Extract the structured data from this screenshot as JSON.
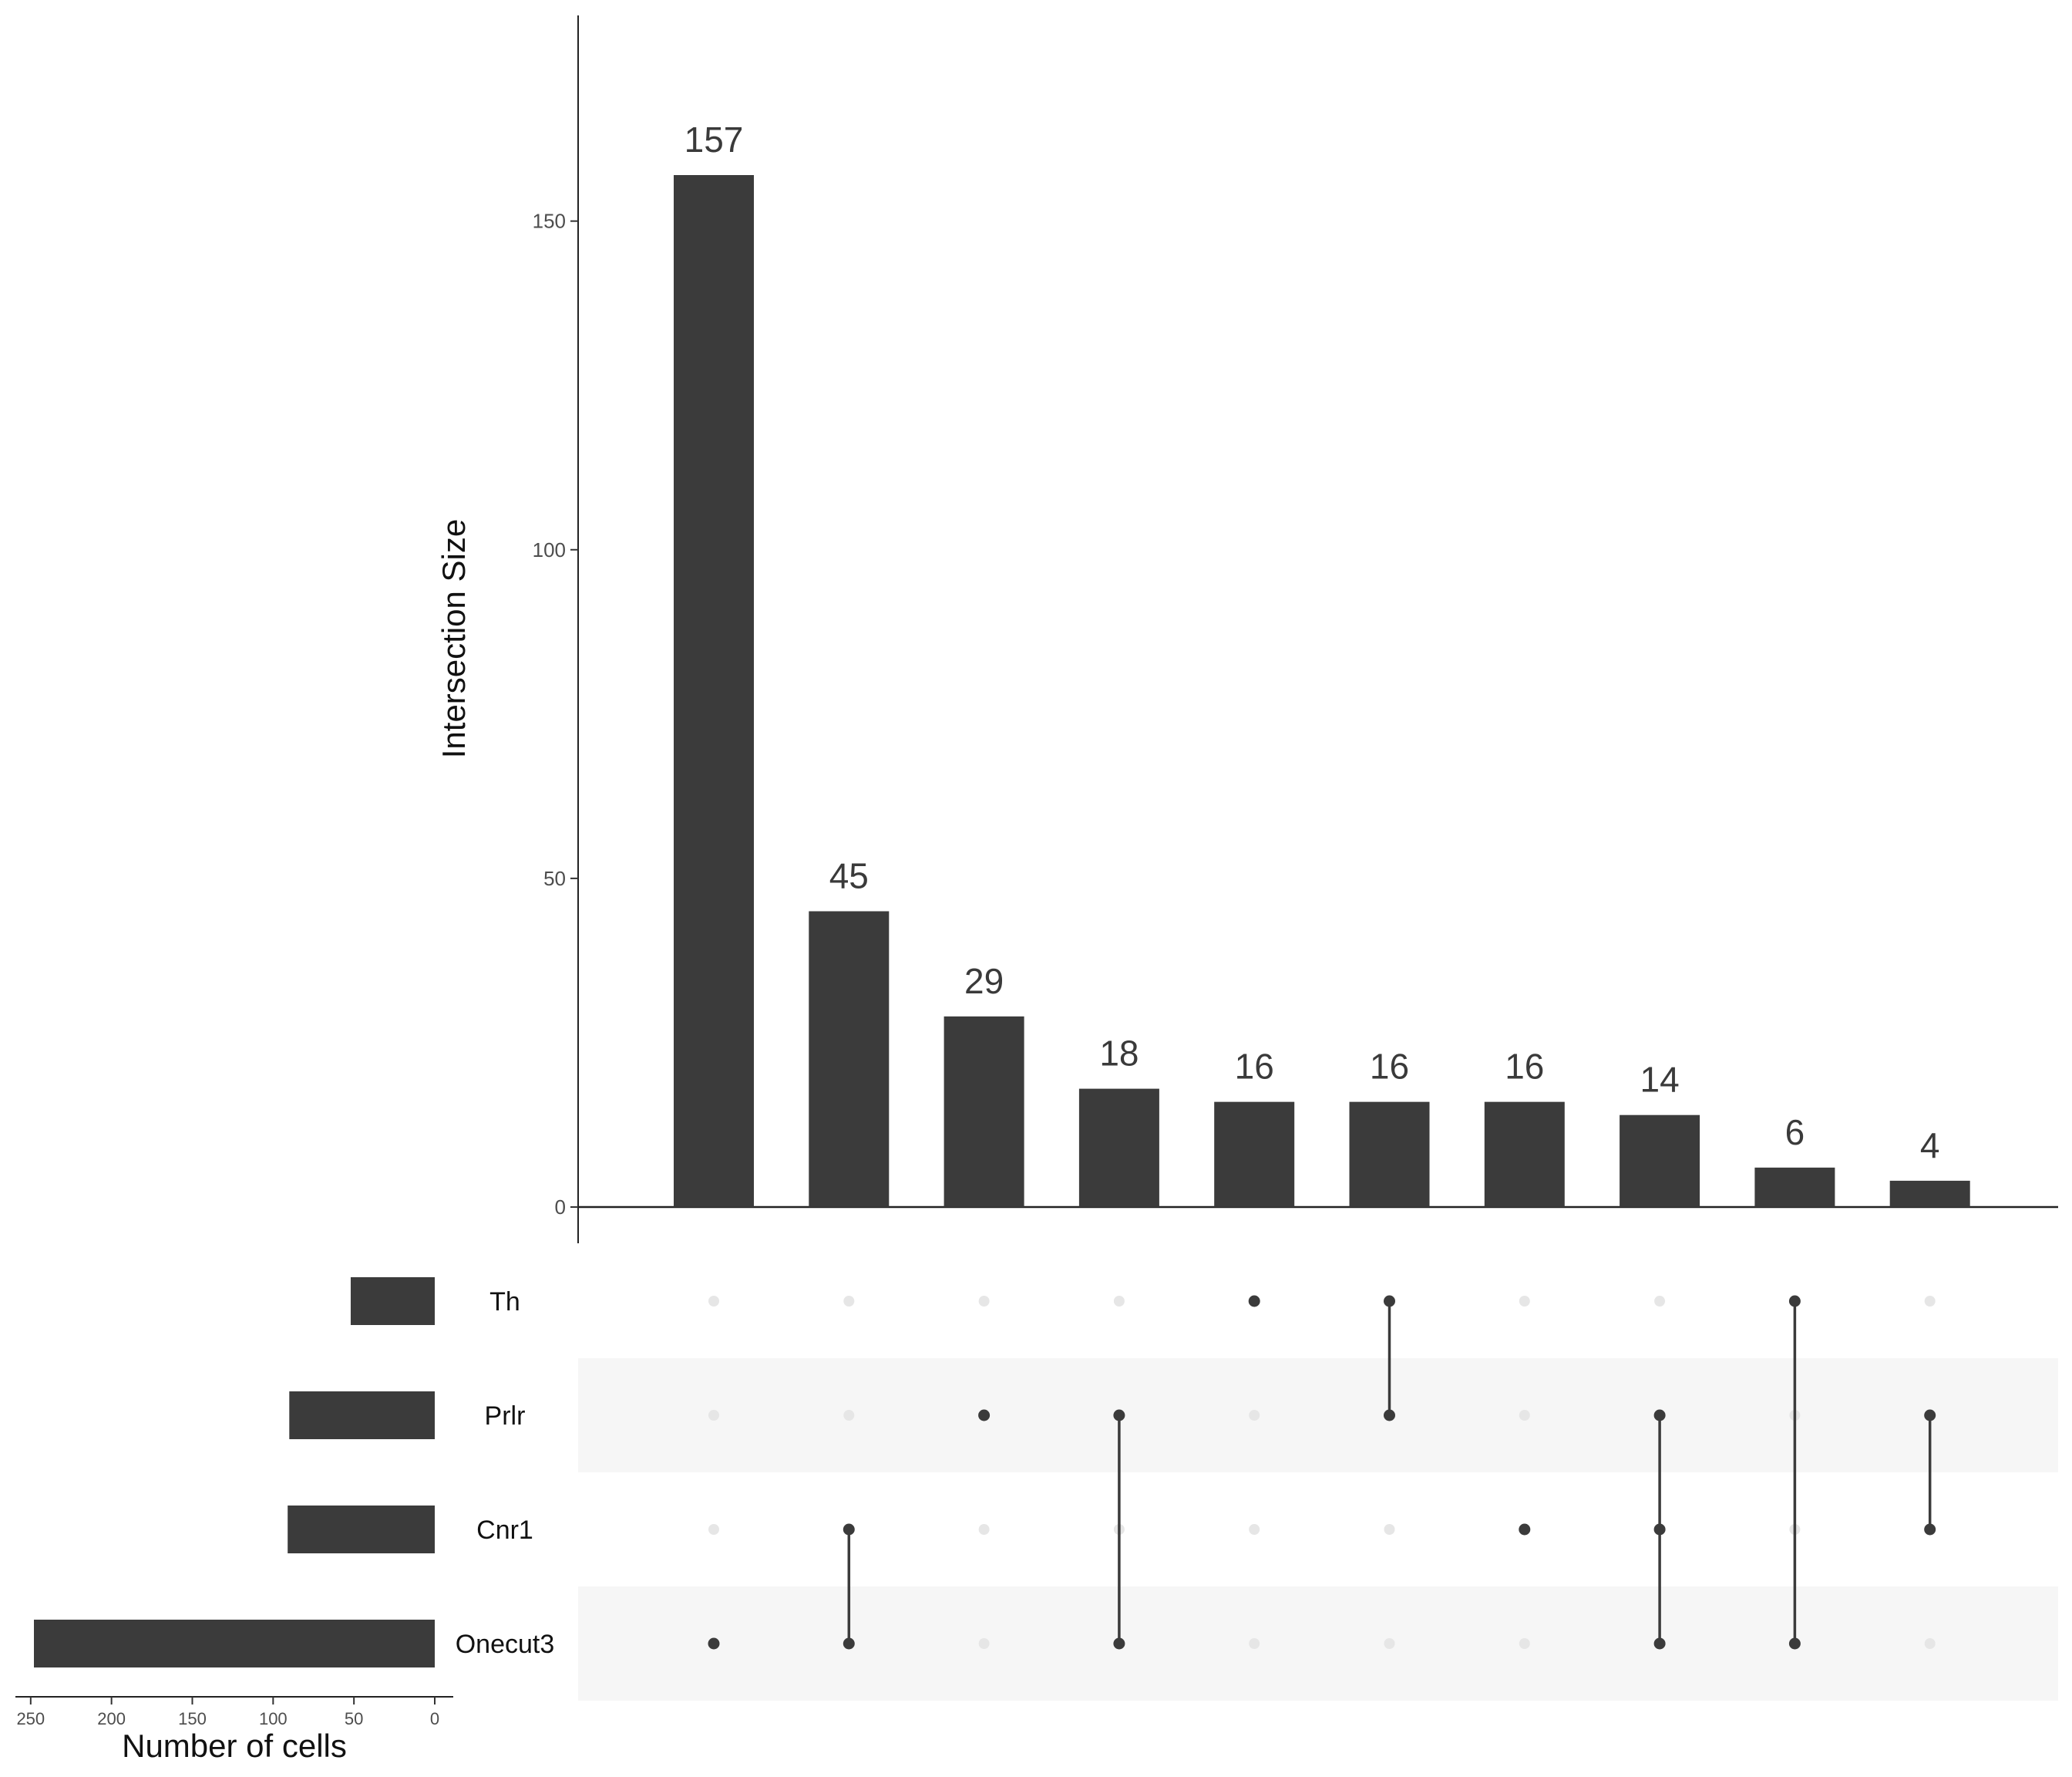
{
  "chart_data": {
    "type": "bar",
    "subtype": "upset",
    "ylabel": "Intersection Size",
    "ylim": [
      0,
      181
    ],
    "yticks": [
      0,
      50,
      100,
      150
    ],
    "intersections": [
      {
        "value": 157,
        "label": "157",
        "sets": [
          "Onecut3"
        ]
      },
      {
        "value": 45,
        "label": "45",
        "sets": [
          "Cnr1",
          "Onecut3"
        ]
      },
      {
        "value": 29,
        "label": "29",
        "sets": [
          "Prlr"
        ]
      },
      {
        "value": 18,
        "label": "18",
        "sets": [
          "Prlr",
          "Onecut3"
        ]
      },
      {
        "value": 16,
        "label": "16",
        "sets": [
          "Th"
        ]
      },
      {
        "value": 16,
        "label": "16",
        "sets": [
          "Th",
          "Prlr"
        ]
      },
      {
        "value": 16,
        "label": "16",
        "sets": [
          "Cnr1"
        ]
      },
      {
        "value": 14,
        "label": "14",
        "sets": [
          "Prlr",
          "Cnr1",
          "Onecut3"
        ]
      },
      {
        "value": 6,
        "label": "6",
        "sets": [
          "Th",
          "Onecut3"
        ]
      },
      {
        "value": 4,
        "label": "4",
        "sets": [
          "Prlr",
          "Cnr1"
        ]
      }
    ],
    "sets": [
      {
        "name": "Th",
        "size": 52
      },
      {
        "name": "Prlr",
        "size": 90
      },
      {
        "name": "Cnr1",
        "size": 91
      },
      {
        "name": "Onecut3",
        "size": 248
      }
    ],
    "set_size_axis": {
      "xlabel": "Number of cells",
      "xlim": [
        0,
        260
      ],
      "ticks": [
        250,
        200,
        150,
        100,
        50,
        0
      ],
      "reversed": true
    },
    "colors": {
      "bar": "#3b3b3b",
      "dot_active": "#3b3b3b",
      "dot_inactive": "#e6e6e6",
      "stripe": "#f6f6f6"
    }
  }
}
